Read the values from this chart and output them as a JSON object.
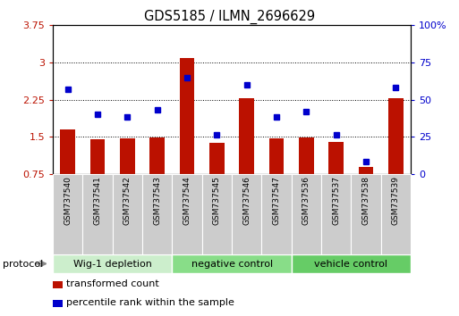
{
  "title": "GDS5185 / ILMN_2696629",
  "samples": [
    "GSM737540",
    "GSM737541",
    "GSM737542",
    "GSM737543",
    "GSM737544",
    "GSM737545",
    "GSM737546",
    "GSM737547",
    "GSM737536",
    "GSM737537",
    "GSM737538",
    "GSM737539"
  ],
  "bar_values": [
    1.65,
    1.45,
    1.46,
    1.48,
    3.08,
    1.38,
    2.28,
    1.46,
    1.49,
    1.4,
    0.88,
    2.27
  ],
  "dot_values": [
    57,
    40,
    38,
    43,
    65,
    26,
    60,
    38,
    42,
    26,
    8,
    58
  ],
  "groups": [
    {
      "label": "Wig-1 depletion",
      "start": 0,
      "end": 3
    },
    {
      "label": "negative control",
      "start": 4,
      "end": 7
    },
    {
      "label": "vehicle control",
      "start": 8,
      "end": 11
    }
  ],
  "group_colors": [
    "#cceecc",
    "#88dd88",
    "#66cc66"
  ],
  "bar_color": "#bb1100",
  "dot_color": "#0000cc",
  "ylim_left": [
    0.75,
    3.75
  ],
  "ylim_right": [
    0,
    100
  ],
  "yticks_left": [
    0.75,
    1.5,
    2.25,
    3.0,
    3.75
  ],
  "ytick_labels_left": [
    "0.75",
    "1.5",
    "2.25",
    "3",
    "3.75"
  ],
  "yticks_right": [
    0,
    25,
    50,
    75,
    100
  ],
  "ytick_labels_right": [
    "0",
    "25",
    "50",
    "75",
    "100%"
  ],
  "legend_items": [
    {
      "label": "transformed count",
      "color": "#bb1100"
    },
    {
      "label": "percentile rank within the sample",
      "color": "#0000cc"
    }
  ],
  "protocol_label": "protocol",
  "sample_bg": "#cccccc",
  "bar_width": 0.5
}
